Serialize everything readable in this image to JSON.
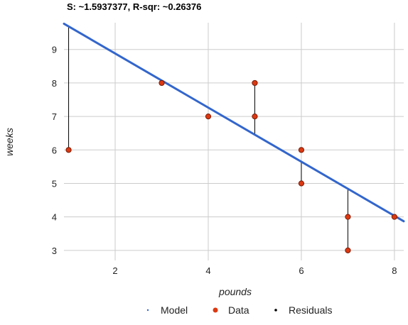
{
  "chart_data": {
    "type": "scatter",
    "title": "S: ~1.5937377, R-sqr: ~0.26376",
    "xlabel": "pounds",
    "ylabel": "weeks",
    "xlim": [
      0.9,
      8.2
    ],
    "ylim": [
      2.7,
      9.8
    ],
    "xticks": [
      2,
      4,
      6,
      8
    ],
    "yticks": [
      3,
      4,
      5,
      6,
      7,
      8,
      9
    ],
    "grid": true,
    "legend_position": "bottom",
    "series": [
      {
        "name": "Model",
        "type": "line",
        "color": "#3366cc",
        "x": [
          0.9,
          8.2
        ],
        "y": [
          9.77,
          3.87
        ]
      },
      {
        "name": "Data",
        "type": "scatter",
        "color": "#dc3912",
        "x": [
          1,
          3,
          4,
          5,
          5,
          6,
          6,
          7,
          7,
          8
        ],
        "y": [
          6,
          8,
          7,
          8,
          7,
          6,
          5,
          4,
          3,
          4
        ]
      },
      {
        "name": "Residuals",
        "type": "segments",
        "color": "#000000",
        "x": [
          1,
          5,
          6,
          7,
          8
        ],
        "y_from": [
          9.69,
          6.45,
          5.64,
          4.83,
          4.03
        ],
        "y_to": [
          6,
          8,
          5,
          3,
          4
        ]
      }
    ]
  }
}
